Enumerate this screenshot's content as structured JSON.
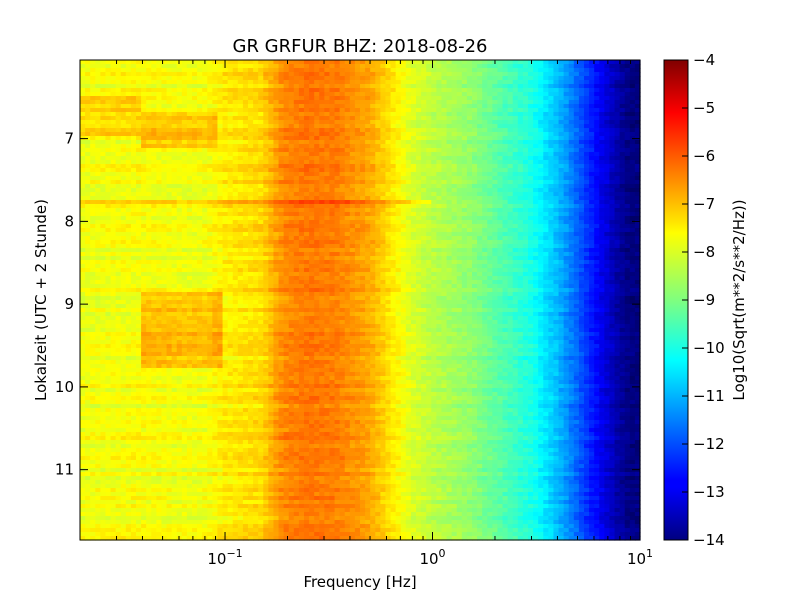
{
  "chart_data": {
    "type": "heatmap",
    "title": "GR GRFUR BHZ: 2018-08-26",
    "xlabel": "Frequency [Hz]",
    "ylabel": "Lokalzeit (UTC + 2 Stunde)",
    "x_scale": "log",
    "xlim": [
      0.02,
      10
    ],
    "ylim": [
      11.85,
      6.05
    ],
    "y_inverted": true,
    "x_ticks": [
      {
        "value": 0.1,
        "base": "10",
        "exp": "−1"
      },
      {
        "value": 1,
        "base": "10",
        "exp": "0"
      },
      {
        "value": 10,
        "base": "10",
        "exp": "1"
      }
    ],
    "y_ticks": [
      7,
      8,
      9,
      10,
      11
    ],
    "colorbar": {
      "label": "Log10(Sqrt(m**2/s**2/Hz))",
      "min": -14,
      "max": -4,
      "ticks": [
        -4,
        -5,
        -6,
        -7,
        -8,
        -9,
        -10,
        -11,
        -12,
        -13,
        -14
      ],
      "colormap": "jet"
    },
    "value_profile_by_frequency": {
      "freq_hz": [
        0.02,
        0.04,
        0.06,
        0.08,
        0.1,
        0.12,
        0.15,
        0.19,
        0.25,
        0.35,
        0.5,
        0.65,
        0.8,
        1.0,
        1.5,
        2.0,
        3.0,
        4.0,
        5.0,
        6.0,
        7.0,
        8.0,
        9.0,
        10.0
      ],
      "log10_amplitude": [
        -7.9,
        -7.8,
        -7.9,
        -7.9,
        -7.6,
        -7.5,
        -7.4,
        -6.6,
        -6.4,
        -6.5,
        -6.9,
        -7.6,
        -8.1,
        -8.4,
        -8.8,
        -9.3,
        -10.0,
        -10.9,
        -11.8,
        -12.6,
        -13.2,
        -13.7,
        -14.0,
        -14.0
      ]
    },
    "time_anomalies": [
      {
        "t_start": 6.7,
        "t_end": 7.1,
        "f_start": 0.04,
        "f_end": 0.09,
        "delta": 0.7
      },
      {
        "t_start": 8.85,
        "t_end": 9.75,
        "f_start": 0.04,
        "f_end": 0.095,
        "delta": 0.8
      },
      {
        "t_start": 6.5,
        "t_end": 6.95,
        "f_start": 0.02,
        "f_end": 0.04,
        "delta": 0.5
      },
      {
        "t_start": 7.75,
        "t_end": 7.8,
        "f_start": 0.02,
        "f_end": 1.0,
        "delta": 0.6
      }
    ]
  }
}
